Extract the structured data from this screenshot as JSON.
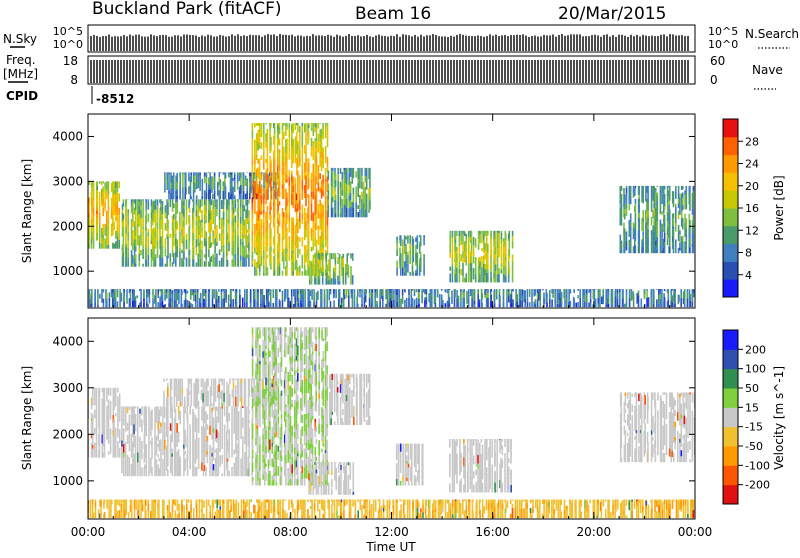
{
  "header": {
    "station": "Buckland Park (fitACF)",
    "beam": "Beam 16",
    "date": "20/Mar/2015"
  },
  "top_panels": {
    "nsky_label": "N.Sky",
    "nsky_ticks": [
      "10^5",
      "10^0"
    ],
    "nsky_right_ticks": [
      "10^5",
      "10^0"
    ],
    "nsearch_label": "N.Search",
    "freq_label": "Freq.",
    "freq_unit": "[MHz]",
    "freq_ticks": [
      "18",
      "8"
    ],
    "nave_label": "Nave",
    "nave_ticks": [
      "60",
      "0"
    ],
    "cpid_label": "CPID",
    "cpid_value": "-8512"
  },
  "colors": {
    "power_scale": [
      "#1a1aff",
      "#2a4fb3",
      "#3f7fbf",
      "#4a9a6a",
      "#7fbf3f",
      "#c8c800",
      "#f5c000",
      "#ff9a00",
      "#ff6000",
      "#e81010"
    ],
    "velocity_scale": [
      "#e01010",
      "#ff5500",
      "#ff9a00",
      "#f0c030",
      "#c8c8c8",
      "#7fcf3f",
      "#2f8f4f",
      "#3050b0",
      "#1a1aff"
    ]
  },
  "chart_data": [
    {
      "type": "heatmap",
      "name": "power",
      "xlabel": "",
      "ylabel": "Slant Range [km]",
      "x_ticks": [
        "00:00",
        "04:00",
        "08:00",
        "12:00",
        "16:00",
        "20:00",
        "00:00"
      ],
      "xlim_hours": [
        0,
        24
      ],
      "ylim_km": [
        180,
        4500
      ],
      "y_ticks": [
        1000,
        2000,
        3000,
        4000
      ],
      "colorbar": {
        "label": "Power [dB]",
        "ticks": [
          "28",
          "24",
          "20",
          "16",
          "12",
          "8",
          "4"
        ],
        "range": [
          0,
          30
        ]
      },
      "echo_regions": [
        {
          "t0": 0.0,
          "t1": 1.3,
          "r0": 1500,
          "r1": 3000,
          "level": 0.75
        },
        {
          "t0": 1.3,
          "t1": 6.5,
          "r0": 1100,
          "r1": 2600,
          "level": 0.55
        },
        {
          "t0": 3.0,
          "t1": 7.5,
          "r0": 2600,
          "r1": 3200,
          "level": 0.35
        },
        {
          "t0": 6.5,
          "t1": 9.5,
          "r0": 900,
          "r1": 4300,
          "level": 0.85
        },
        {
          "t0": 9.5,
          "t1": 11.2,
          "r0": 2200,
          "r1": 3300,
          "level": 0.45
        },
        {
          "t0": 8.7,
          "t1": 10.5,
          "r0": 700,
          "r1": 1400,
          "level": 0.55
        },
        {
          "t0": 12.2,
          "t1": 13.3,
          "r0": 900,
          "r1": 1800,
          "level": 0.45
        },
        {
          "t0": 14.3,
          "t1": 16.8,
          "r0": 750,
          "r1": 1900,
          "level": 0.6
        },
        {
          "t0": 21.0,
          "t1": 24.0,
          "r0": 1400,
          "r1": 2900,
          "level": 0.4
        },
        {
          "t0": 0.0,
          "t1": 24.0,
          "r0": 200,
          "r1": 600,
          "level": 0.3
        }
      ]
    },
    {
      "type": "heatmap",
      "name": "velocity",
      "xlabel": "Time UT",
      "ylabel": "Slant Range [km]",
      "x_ticks": [
        "00:00",
        "04:00",
        "08:00",
        "12:00",
        "16:00",
        "20:00",
        "00:00"
      ],
      "xlim_hours": [
        0,
        24
      ],
      "ylim_km": [
        180,
        4500
      ],
      "y_ticks": [
        1000,
        2000,
        3000,
        4000
      ],
      "colorbar": {
        "label": "Velocity [m s^-1]",
        "ticks": [
          "200",
          "100",
          "50",
          "15",
          "-15",
          "-50",
          "-100",
          "-200"
        ],
        "range": [
          -250,
          250
        ]
      },
      "echo_regions": [
        {
          "t0": 0.0,
          "t1": 1.3,
          "r0": 1500,
          "r1": 3000,
          "level": 0.0
        },
        {
          "t0": 1.3,
          "t1": 6.5,
          "r0": 1100,
          "r1": 2600,
          "level": 0.0
        },
        {
          "t0": 3.0,
          "t1": 7.5,
          "r0": 2600,
          "r1": 3200,
          "level": 0.0
        },
        {
          "t0": 6.5,
          "t1": 9.5,
          "r0": 900,
          "r1": 4300,
          "level": 0.1
        },
        {
          "t0": 9.5,
          "t1": 11.2,
          "r0": 2200,
          "r1": 3300,
          "level": 0.0
        },
        {
          "t0": 8.7,
          "t1": 10.5,
          "r0": 700,
          "r1": 1400,
          "level": 0.0
        },
        {
          "t0": 12.2,
          "t1": 13.3,
          "r0": 900,
          "r1": 1800,
          "level": 0.0
        },
        {
          "t0": 14.3,
          "t1": 16.8,
          "r0": 750,
          "r1": 1900,
          "level": 0.0
        },
        {
          "t0": 21.0,
          "t1": 24.0,
          "r0": 1400,
          "r1": 2900,
          "level": 0.0
        },
        {
          "t0": 0.0,
          "t1": 24.0,
          "r0": 200,
          "r1": 600,
          "level": -0.3
        }
      ]
    }
  ]
}
